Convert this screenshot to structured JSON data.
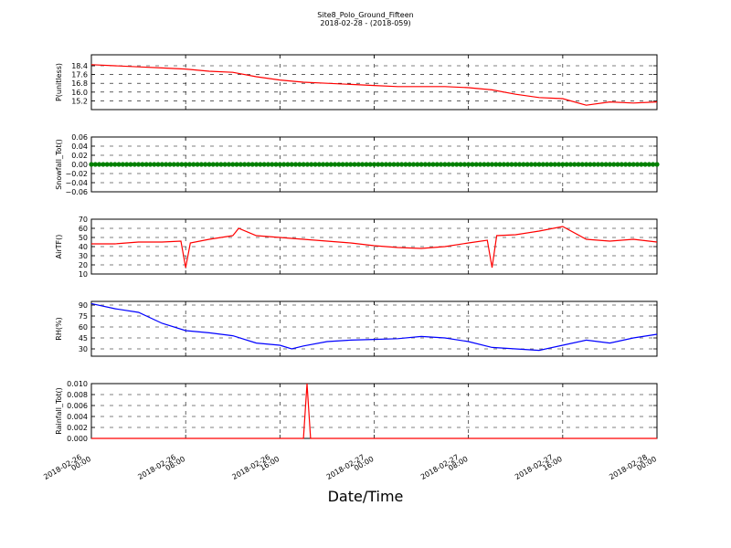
{
  "figure": {
    "title": "Site8_Polo_Ground_Fifteen",
    "subtitle": "2018-02-28 - (2018-059)",
    "xlabel": "Date/Time"
  },
  "chart_data": [
    {
      "type": "line",
      "ylabel": "P(unitless)",
      "ylim": [
        14.4,
        19.4
      ],
      "yticks": [
        "18.4",
        "17.6",
        "16.8",
        "16.0",
        "15.2"
      ],
      "ytick_values": [
        18.4,
        17.6,
        16.8,
        16.0,
        15.2
      ],
      "color": "#ff0000",
      "grid": true,
      "x": [
        0,
        2,
        4,
        6,
        8,
        10,
        12,
        14,
        16,
        18,
        20,
        22,
        24,
        26,
        28,
        30,
        32,
        34,
        36,
        38,
        40,
        42,
        44,
        46,
        48
      ],
      "y": [
        18.5,
        18.4,
        18.3,
        18.2,
        18.1,
        17.9,
        17.8,
        17.4,
        17.1,
        16.9,
        16.8,
        16.7,
        16.6,
        16.5,
        16.5,
        16.5,
        16.4,
        16.2,
        15.8,
        15.5,
        15.4,
        14.8,
        15.1,
        15.0,
        15.1
      ]
    },
    {
      "type": "scatter",
      "ylabel": "Snowfall_Tot()",
      "ylim": [
        -0.06,
        0.06
      ],
      "yticks": [
        "0.06",
        "0.04",
        "0.02",
        "0.00",
        "−0.02",
        "−0.04",
        "−0.06"
      ],
      "ytick_values": [
        0.06,
        0.04,
        0.02,
        0.0,
        -0.02,
        -0.04,
        -0.06
      ],
      "color": "#008000",
      "grid": true,
      "x_range": [
        0,
        48
      ],
      "y_constant": 0.0,
      "note_points": 145
    },
    {
      "type": "line",
      "ylabel": "AirTF()",
      "ylim": [
        10,
        70
      ],
      "yticks": [
        "70",
        "60",
        "50",
        "40",
        "30",
        "20",
        "10"
      ],
      "ytick_values": [
        70,
        60,
        50,
        40,
        30,
        20,
        10
      ],
      "color": "#ff0000",
      "grid": true,
      "x": [
        0,
        2,
        4,
        6,
        7.6,
        8,
        8.4,
        10,
        12,
        12.5,
        14,
        16,
        18,
        20,
        22,
        24,
        26,
        28,
        30,
        32,
        33.6,
        34,
        34.4,
        36,
        38,
        40,
        42,
        44,
        46,
        48
      ],
      "y": [
        43,
        43,
        45,
        45,
        46,
        17,
        44,
        48,
        52,
        60,
        52,
        50,
        48,
        46,
        44,
        41,
        39,
        38,
        40,
        44,
        47,
        17,
        52,
        53,
        57,
        62,
        48,
        46,
        48,
        45
      ]
    },
    {
      "type": "line",
      "ylabel": "RH(%)",
      "ylim": [
        20,
        95
      ],
      "yticks": [
        "90",
        "75",
        "60",
        "45",
        "30"
      ],
      "ytick_values": [
        90,
        75,
        60,
        45,
        30
      ],
      "color": "#0000ff",
      "grid": true,
      "x": [
        0,
        2,
        4,
        6,
        8,
        10,
        12,
        14,
        16,
        17,
        18,
        20,
        22,
        24,
        26,
        28,
        30,
        32,
        34,
        36,
        38,
        40,
        42,
        44,
        46,
        48
      ],
      "y": [
        92,
        85,
        80,
        65,
        55,
        52,
        48,
        38,
        35,
        30,
        34,
        40,
        42,
        43,
        44,
        47,
        45,
        40,
        32,
        30,
        28,
        35,
        42,
        38,
        45,
        50
      ]
    },
    {
      "type": "line",
      "ylabel": "Rainfall_Tot()",
      "ylim": [
        0,
        0.01
      ],
      "yticks": [
        "0.010",
        "0.008",
        "0.006",
        "0.004",
        "0.002",
        "0.000"
      ],
      "ytick_values": [
        0.01,
        0.008,
        0.006,
        0.004,
        0.002,
        0.0
      ],
      "color": "#ff0000",
      "grid": true,
      "x": [
        0,
        18,
        18.3,
        18.6,
        48
      ],
      "y": [
        0,
        0,
        0.01,
        0,
        0
      ]
    }
  ],
  "x_axis": {
    "range_hours": [
      0,
      48
    ],
    "tick_hours": [
      0,
      8,
      16,
      24,
      32,
      40,
      48
    ],
    "tick_dates": [
      "2018-02-26",
      "2018-02-26",
      "2018-02-26",
      "2018-02-27",
      "2018-02-27",
      "2018-02-27",
      "2018-02-28"
    ],
    "tick_times": [
      "00:00",
      "08:00",
      "16:00",
      "00:00",
      "08:00",
      "16:00",
      "00:00"
    ]
  }
}
